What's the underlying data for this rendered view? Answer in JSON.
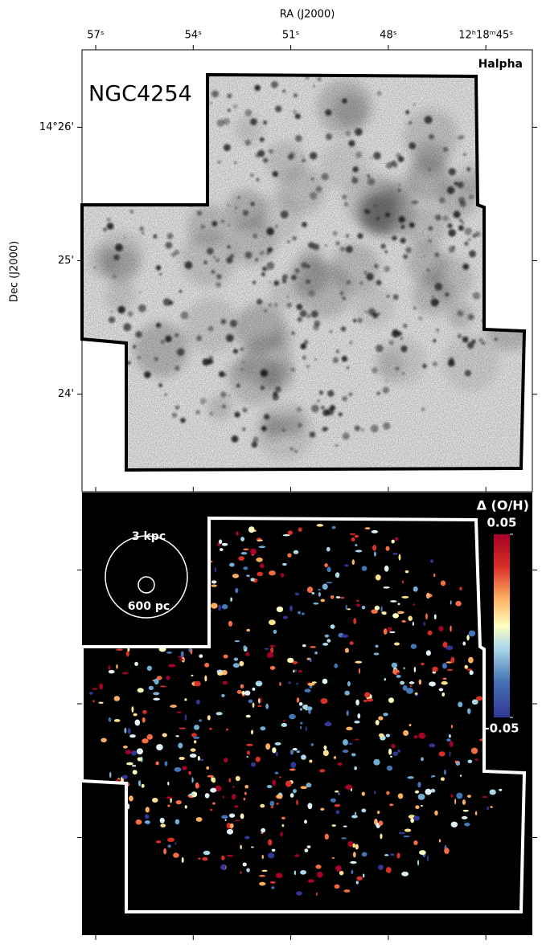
{
  "chart_data": [
    {
      "type": "image",
      "title": "NGC4254",
      "label": "Halpha",
      "xlabel": "RA (J2000)",
      "ylabel": "Dec (J2000)",
      "xlim": [
        57.42,
        43.57
      ],
      "ylim": [
        23.27,
        26.58
      ],
      "xticks": [
        {
          "value": 57,
          "label": "57ˢ"
        },
        {
          "value": 54,
          "label": "54ˢ"
        },
        {
          "value": 51,
          "label": "51ˢ"
        },
        {
          "value": 48,
          "label": "48ˢ"
        },
        {
          "value": 45,
          "label": "12ʰ18ᵐ45ˢ"
        }
      ],
      "yticks": [
        {
          "value": 26,
          "label": "14°26'"
        },
        {
          "value": 25,
          "label": "25'"
        },
        {
          "value": 24,
          "label": "24'"
        }
      ]
    },
    {
      "type": "image",
      "scale_labels": [
        "3 kpc",
        "600 pc"
      ],
      "xlim": [
        57.42,
        43.57
      ],
      "ylim": [
        23.27,
        26.58
      ],
      "xticks": [
        57,
        54,
        51,
        48,
        45
      ],
      "yticks": [
        26,
        25,
        24
      ],
      "colorbar": {
        "title": "Δ (O/H)",
        "lim": [
          -0.05,
          0.05
        ],
        "ticks": [
          -0.05,
          0.05
        ]
      }
    }
  ]
}
